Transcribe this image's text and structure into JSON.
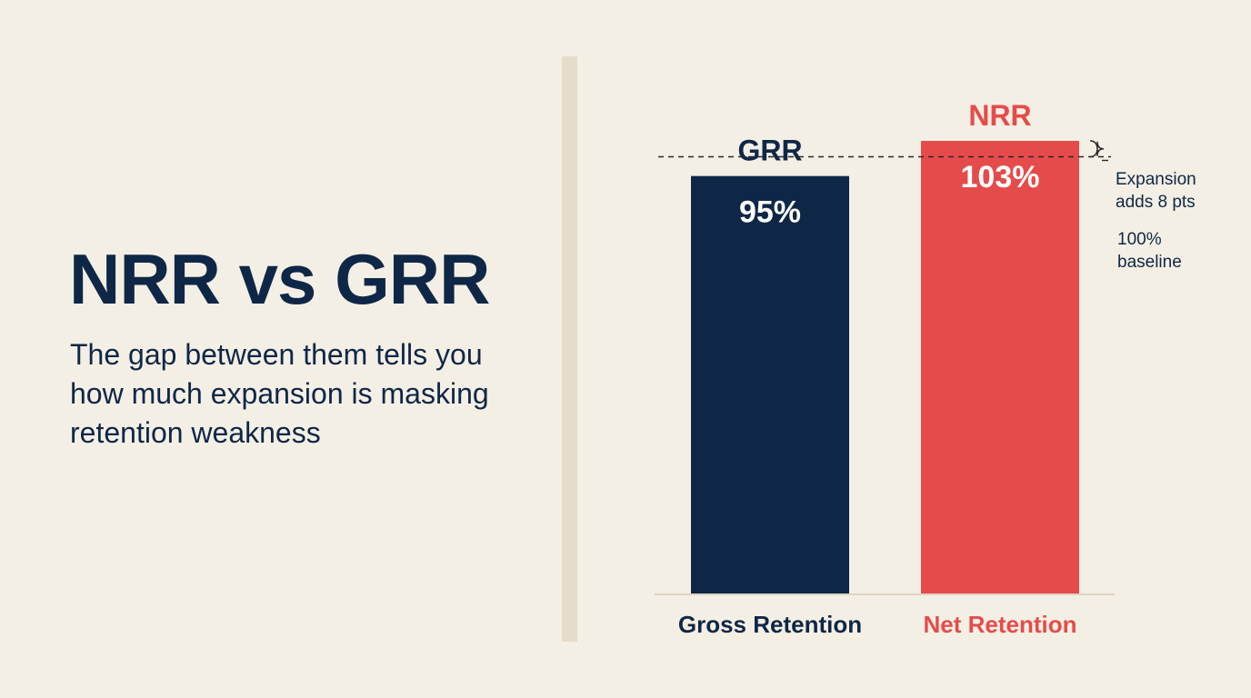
{
  "title": "NRR vs GRR",
  "subtitle": "The gap between them tells you how much expansion is masking retention weakness",
  "colors": {
    "background": "#f4efe4",
    "navy": "#0f2747",
    "red": "#e64b4b",
    "divider": "#e6dccb"
  },
  "chart_data": {
    "type": "bar",
    "categories": [
      "Gross Retention",
      "Net Retention"
    ],
    "series": [
      {
        "values": [
          95,
          103
        ]
      }
    ],
    "bar_names": [
      "GRR",
      "NRR"
    ],
    "value_labels": [
      "95%",
      "103%"
    ],
    "bar_colors": [
      "#0f2747",
      "#e64b4b"
    ],
    "ylim": [
      0,
      103
    ],
    "reference_line": {
      "value": 100,
      "label_lines": [
        "100%",
        "baseline"
      ],
      "style": "dashed"
    },
    "annotation": {
      "from": 100,
      "to": 103,
      "label_lines": [
        "Expansion",
        "adds 8 pts"
      ],
      "style": "brace"
    },
    "grid": false,
    "legend": "none"
  }
}
